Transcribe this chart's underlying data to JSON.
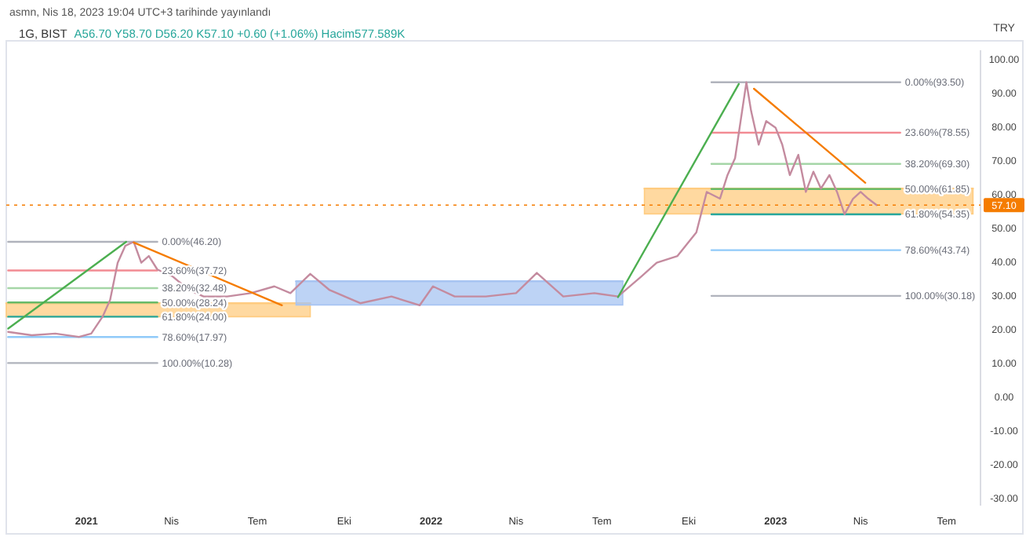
{
  "chart_data": {
    "type": "line",
    "title": "1G, BIST",
    "subtitle": "A56.70 Y58.70 D56.20 K57.10 +0.60 (+1.06%) Hacim577.589K",
    "ylabel": "TRY",
    "xlim": [
      "2020-10-08",
      "2023-08-06"
    ],
    "ylim": [
      -32,
      103
    ],
    "xticks": [
      {
        "value": "2021-01-01",
        "label": "2021"
      },
      {
        "value": "2021-04-01",
        "label": "Nis"
      },
      {
        "value": "2021-07-01",
        "label": "Tem"
      },
      {
        "value": "2021-10-01",
        "label": "Eki"
      },
      {
        "value": "2022-01-01",
        "label": "2022"
      },
      {
        "value": "2022-04-01",
        "label": "Nis"
      },
      {
        "value": "2022-07-01",
        "label": "Tem"
      },
      {
        "value": "2022-10-01",
        "label": "Eki"
      },
      {
        "value": "2023-01-01",
        "label": "2023"
      },
      {
        "value": "2023-04-01",
        "label": "Nis"
      },
      {
        "value": "2023-07-01",
        "label": "Tem"
      }
    ],
    "yticks": [
      {
        "value": 100,
        "label": "100.00"
      },
      {
        "value": 90,
        "label": "90.00"
      },
      {
        "value": 80,
        "label": "80.00"
      },
      {
        "value": 70,
        "label": "70.00"
      },
      {
        "value": 60,
        "label": "60.00"
      },
      {
        "value": 50,
        "label": "50.00"
      },
      {
        "value": 40,
        "label": "40.00"
      },
      {
        "value": 30,
        "label": "30.00"
      },
      {
        "value": 20,
        "label": "20.00"
      },
      {
        "value": 10,
        "label": "10.00"
      },
      {
        "value": 0,
        "label": "0.00"
      },
      {
        "value": -10,
        "label": "-10.00"
      },
      {
        "value": -20,
        "label": "-20.00"
      },
      {
        "value": -30,
        "label": "-30.00"
      }
    ],
    "grid": false,
    "marker": "none",
    "line_style": "solid",
    "ref_lines": [
      {
        "axis": "y",
        "value": 57.1,
        "label": "57.10",
        "color": "#f57c00",
        "line_style": "dotted"
      }
    ],
    "series": [
      {
        "color": "#ffcc80",
        "x": [
          "2020-10-08",
          "2021-08-26"
        ],
        "values": [
          28,
          28
        ],
        "lower": [
          24,
          24
        ],
        "upper": [
          28,
          28
        ]
      },
      {
        "color": "#ffcc80",
        "x": [
          "2022-08-15",
          "2023-07-29"
        ],
        "values": [
          62,
          62
        ],
        "lower": [
          54.5,
          54.5
        ],
        "upper": [
          62,
          62
        ]
      },
      {
        "color": "#a7c4f2",
        "x": [
          "2021-08-11",
          "2022-07-23"
        ],
        "values": [
          34.5,
          34.5
        ],
        "lower": [
          27.5,
          27.5
        ],
        "upper": [
          34.5,
          34.5
        ]
      },
      {
        "color": "#b0b3bc",
        "x": [
          "2020-10-10",
          "2021-03-17"
        ],
        "values": [
          46.2,
          46.2
        ]
      },
      {
        "color": "#f28b93",
        "x": [
          "2020-10-10",
          "2021-03-17"
        ],
        "values": [
          37.72,
          37.72
        ]
      },
      {
        "color": "#a5d6a7",
        "x": [
          "2020-10-10",
          "2021-03-17"
        ],
        "values": [
          32.48,
          32.48
        ]
      },
      {
        "color": "#66bb6a",
        "x": [
          "2020-10-10",
          "2021-03-17"
        ],
        "values": [
          28.24,
          28.24
        ]
      },
      {
        "color": "#26a69a",
        "x": [
          "2020-10-10",
          "2021-03-17"
        ],
        "values": [
          24.0,
          24.0
        ]
      },
      {
        "color": "#90caf9",
        "x": [
          "2020-10-10",
          "2021-03-17"
        ],
        "values": [
          17.97,
          17.97
        ]
      },
      {
        "color": "#b0b3bc",
        "x": [
          "2020-10-10",
          "2021-03-17"
        ],
        "values": [
          10.28,
          10.28
        ]
      },
      {
        "color": "#b0b3bc",
        "x": [
          "2022-10-25",
          "2023-05-13"
        ],
        "values": [
          93.5,
          93.5
        ]
      },
      {
        "color": "#f28b93",
        "x": [
          "2022-10-25",
          "2023-05-13"
        ],
        "values": [
          78.55,
          78.55
        ]
      },
      {
        "color": "#a5d6a7",
        "x": [
          "2022-10-25",
          "2023-05-13"
        ],
        "values": [
          69.3,
          69.3
        ]
      },
      {
        "color": "#66bb6a",
        "x": [
          "2022-10-25",
          "2023-05-13"
        ],
        "values": [
          61.85,
          61.85
        ]
      },
      {
        "color": "#26a69a",
        "x": [
          "2022-10-25",
          "2023-05-13"
        ],
        "values": [
          54.35,
          54.35
        ]
      },
      {
        "color": "#90caf9",
        "x": [
          "2022-10-25",
          "2023-05-13"
        ],
        "values": [
          43.74,
          43.74
        ]
      },
      {
        "color": "#b0b3bc",
        "x": [
          "2022-10-25",
          "2023-05-13"
        ],
        "values": [
          30.18,
          30.18
        ]
      },
      {
        "color": "#c48b9f",
        "x": [
          "2020-10-10",
          "2020-11-04",
          "2020-11-29",
          "2020-12-24",
          "2021-01-06",
          "2021-01-18",
          "2021-01-26",
          "2021-02-03",
          "2021-02-11",
          "2021-02-20",
          "2021-02-28",
          "2021-03-08",
          "2021-03-17",
          "2021-04-02",
          "2021-04-19",
          "2021-05-05",
          "2021-05-30",
          "2021-06-24",
          "2021-07-19",
          "2021-08-05",
          "2021-08-26",
          "2021-09-15",
          "2021-10-18",
          "2021-11-20",
          "2021-12-20",
          "2022-01-03",
          "2022-01-26",
          "2022-02-28",
          "2022-04-01",
          "2022-04-23",
          "2022-05-21",
          "2022-06-23",
          "2022-07-18",
          "2022-08-12",
          "2022-08-28",
          "2022-09-19",
          "2022-10-09",
          "2022-10-20",
          "2022-11-03",
          "2022-11-11",
          "2022-11-19",
          "2022-12-01",
          "2022-12-06",
          "2022-12-14",
          "2022-12-22",
          "2023-01-01",
          "2023-01-08",
          "2023-01-16",
          "2023-01-25",
          "2023-02-02",
          "2023-02-10",
          "2023-02-18",
          "2023-02-27",
          "2023-03-07",
          "2023-03-15",
          "2023-03-24",
          "2023-04-01",
          "2023-04-09",
          "2023-04-18"
        ],
        "values": [
          19.5,
          18.5,
          19,
          18,
          19,
          24,
          29,
          40,
          45,
          46.2,
          40,
          42,
          38,
          36,
          32,
          30,
          30,
          31,
          33,
          31,
          36.7,
          32,
          28,
          30,
          27.4,
          33,
          30,
          30,
          31,
          37,
          30,
          31,
          30,
          36,
          40,
          42,
          49,
          61,
          59,
          66,
          71,
          93.5,
          85,
          75,
          82,
          80,
          75,
          66,
          72,
          61,
          67,
          62,
          66,
          61,
          54.4,
          59,
          61,
          59,
          57.1
        ]
      },
      {
        "color": "#4caf50",
        "x": [
          "2020-10-10",
          "2021-02-12"
        ],
        "values": [
          20.5,
          46.2
        ]
      },
      {
        "color": "#f57c00",
        "x": [
          "2021-02-20",
          "2021-07-27"
        ],
        "values": [
          46,
          27.4
        ]
      },
      {
        "color": "#4caf50",
        "x": [
          "2022-07-18",
          "2022-11-23"
        ],
        "values": [
          29.8,
          93
        ]
      },
      {
        "color": "#f57c00",
        "x": [
          "2022-12-09",
          "2023-04-06"
        ],
        "values": [
          91.6,
          63.7
        ]
      }
    ],
    "annotations": [
      "asmn, Nis 18, 2023 19:04 UTC+3 tarihinde yayınlandı",
      {
        "text": "0.00%(46.20)",
        "x": "2021-03-17",
        "y": 46.2
      },
      {
        "text": "23.60%(37.72)",
        "x": "2021-03-17",
        "y": 37.72
      },
      {
        "text": "38.20%(32.48)",
        "x": "2021-03-17",
        "y": 32.48
      },
      {
        "text": "50.00%(28.24)",
        "x": "2021-03-17",
        "y": 28.24
      },
      {
        "text": "61.80%(24.00)",
        "x": "2021-03-17",
        "y": 24.0
      },
      {
        "text": "78.60%(17.97)",
        "x": "2021-03-17",
        "y": 17.97
      },
      {
        "text": "100.00%(10.28)",
        "x": "2021-03-17",
        "y": 10.28
      },
      {
        "text": "0.00%(93.50)",
        "x": "2023-05-13",
        "y": 93.5
      },
      {
        "text": "23.60%(78.55)",
        "x": "2023-05-13",
        "y": 78.55
      },
      {
        "text": "38.20%(69.30)",
        "x": "2023-05-13",
        "y": 69.3
      },
      {
        "text": "50.00%(61.85)",
        "x": "2023-05-13",
        "y": 61.85
      },
      {
        "text": "61.80%(54.35)",
        "x": "2023-05-13",
        "y": 54.35
      },
      {
        "text": "78.60%(43.74)",
        "x": "2023-05-13",
        "y": 43.74
      },
      {
        "text": "100.00%(30.18)",
        "x": "2023-05-13",
        "y": 30.18
      }
    ]
  }
}
